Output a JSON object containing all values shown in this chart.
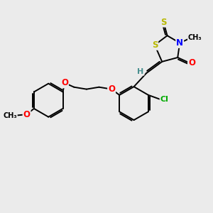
{
  "background_color": "#ebebeb",
  "atom_colors": {
    "S": "#b8b800",
    "N": "#0000ff",
    "O": "#ff0000",
    "Cl": "#00aa00",
    "C": "#000000",
    "H": "#4a9090"
  },
  "bond_color": "#000000",
  "bond_width": 1.4,
  "figsize": [
    3.0,
    3.0
  ],
  "dpi": 100
}
